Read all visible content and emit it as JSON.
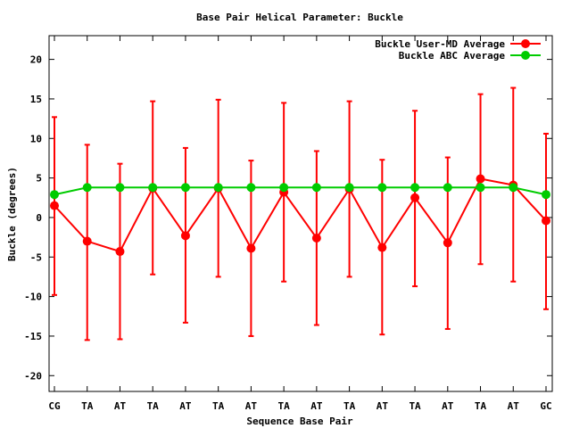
{
  "chart_data": {
    "type": "line",
    "title": "Base Pair Helical Parameter: Buckle",
    "xlabel": "Sequence Base Pair",
    "ylabel": "Buckle (degrees)",
    "categories": [
      "CG",
      "TA",
      "AT",
      "TA",
      "AT",
      "TA",
      "AT",
      "TA",
      "AT",
      "TA",
      "AT",
      "TA",
      "AT",
      "TA",
      "AT",
      "GC"
    ],
    "ylim": [
      -22,
      23
    ],
    "yticks": [
      -20,
      -15,
      -10,
      -5,
      0,
      5,
      10,
      15,
      20
    ],
    "grid": false,
    "legend_position": "top-right",
    "series": [
      {
        "name": "Buckle User-MD Average",
        "color": "#ff0000",
        "values": [
          1.5,
          -3.0,
          -4.3,
          3.7,
          -2.3,
          3.7,
          -3.9,
          3.2,
          -2.6,
          3.6,
          -3.8,
          2.5,
          -3.2,
          4.9,
          4.1,
          -0.4
        ],
        "error_low": [
          -9.8,
          -15.5,
          -15.4,
          -7.2,
          -13.3,
          -7.5,
          -15.0,
          -8.1,
          -13.6,
          -7.5,
          -14.8,
          -8.7,
          -14.1,
          -5.9,
          -8.1,
          -11.6
        ],
        "error_high": [
          12.7,
          9.2,
          6.8,
          14.7,
          8.8,
          14.9,
          7.2,
          14.5,
          8.4,
          14.7,
          7.3,
          13.5,
          7.6,
          15.6,
          16.4,
          10.6
        ]
      },
      {
        "name": "Buckle ABC Average",
        "color": "#00cc00",
        "values": [
          2.9,
          3.8,
          3.8,
          3.8,
          3.8,
          3.8,
          3.8,
          3.8,
          3.8,
          3.8,
          3.8,
          3.8,
          3.8,
          3.8,
          3.8,
          2.9
        ]
      }
    ]
  }
}
